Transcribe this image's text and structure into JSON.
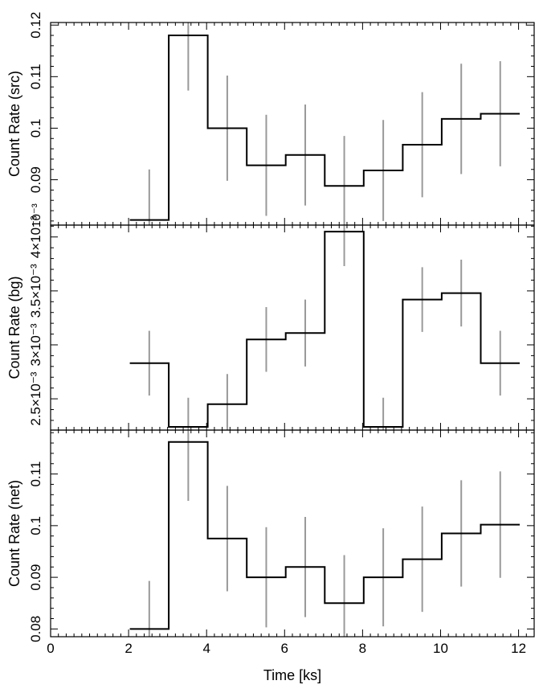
{
  "chart_data": [
    {
      "type": "line",
      "style": "step-with-errorbars",
      "ylabel": "Count Rate (src)",
      "xlim": [
        0,
        12.4
      ],
      "ylim": [
        0.0812,
        0.1205
      ],
      "ytick_values": [
        0.09,
        0.1,
        0.11,
        0.12
      ],
      "ytick_labels": [
        "0.09",
        "0.1",
        "0.11",
        "0.12"
      ],
      "offset_label": "10⁻³",
      "bin_edges": [
        2.03,
        3.03,
        4.03,
        5.03,
        6.03,
        7.03,
        8.03,
        9.03,
        10.03,
        11.03,
        12.03
      ],
      "values": [
        0.0822,
        0.118,
        0.1,
        0.0928,
        0.0948,
        0.0888,
        0.0918,
        0.0968,
        0.1018,
        0.1028
      ],
      "errors": [
        0.0098,
        0.0107,
        0.0102,
        0.0098,
        0.0098,
        0.0097,
        0.0098,
        0.0102,
        0.0107,
        0.0102
      ],
      "error_color": "#999999",
      "line_color": "#000000"
    },
    {
      "type": "line",
      "style": "step-with-errorbars",
      "ylabel": "Count Rate (bg)",
      "xlim": [
        0,
        12.4
      ],
      "ylim": [
        0.00221,
        0.00411
      ],
      "ytick_values": [
        0.0025,
        0.003,
        0.0035,
        0.004
      ],
      "ytick_labels": [
        "2.5×10⁻³",
        "3×10⁻³",
        "3.5×10⁻³",
        "4×10⁻³"
      ],
      "bin_edges": [
        2.03,
        3.03,
        4.03,
        5.03,
        6.03,
        7.03,
        8.03,
        9.03,
        10.03,
        11.03,
        12.03
      ],
      "values": [
        0.00283,
        0.00224,
        0.00245,
        0.00305,
        0.00311,
        0.00405,
        0.00224,
        0.00342,
        0.00348,
        0.00283
      ],
      "errors": [
        0.0003,
        0.00027,
        0.00028,
        0.0003,
        0.00031,
        0.00032,
        0.00027,
        0.0003,
        0.00031,
        0.0003
      ],
      "error_color": "#999999",
      "line_color": "#000000"
    },
    {
      "type": "line",
      "style": "step-with-errorbars",
      "ylabel": "Count Rate (net)",
      "xlabel": "Time [ks]",
      "xlim": [
        0,
        12.4
      ],
      "ylim": [
        0.0785,
        0.1185
      ],
      "xtick_values": [
        0,
        2,
        4,
        6,
        8,
        10,
        12
      ],
      "xtick_labels": [
        "0",
        "2",
        "4",
        "6",
        "8",
        "10",
        "12"
      ],
      "ytick_values": [
        0.08,
        0.09,
        0.1,
        0.11
      ],
      "ytick_labels": [
        "0.08",
        "0.09",
        "0.1",
        "0.11"
      ],
      "bin_edges": [
        2.03,
        3.03,
        4.03,
        5.03,
        6.03,
        7.03,
        8.03,
        9.03,
        10.03,
        11.03,
        12.03
      ],
      "values": [
        0.08,
        0.1162,
        0.0975,
        0.09,
        0.092,
        0.085,
        0.09,
        0.0935,
        0.0985,
        0.1002
      ],
      "errors": [
        0.0093,
        0.0114,
        0.0102,
        0.0097,
        0.0097,
        0.0093,
        0.0095,
        0.0102,
        0.0103,
        0.0103
      ],
      "error_color": "#999999",
      "line_color": "#000000"
    }
  ]
}
